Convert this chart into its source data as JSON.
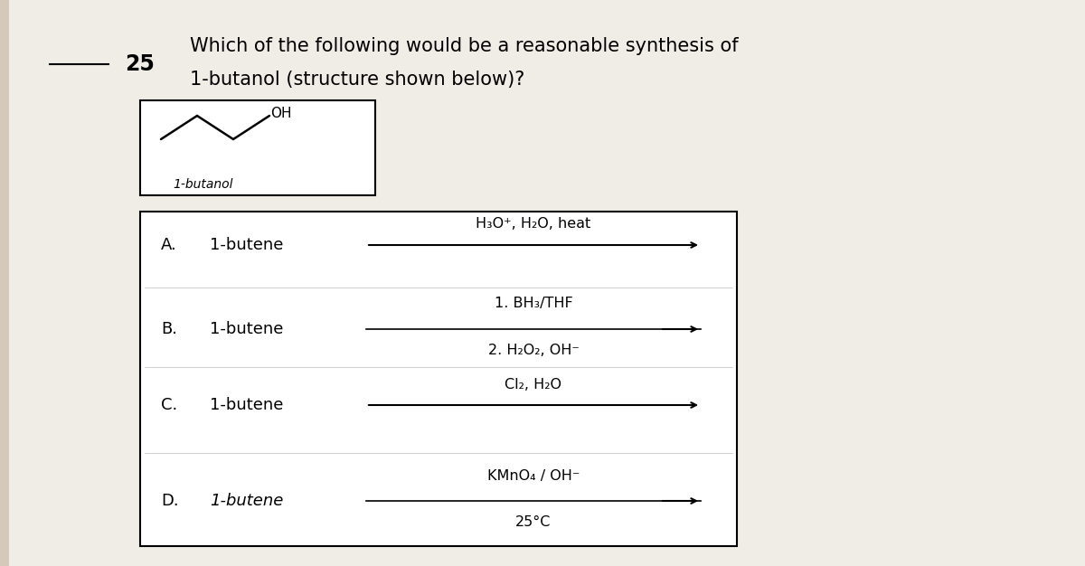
{
  "bg_color": "#d4c9bb",
  "paper_color": "#f0ece6",
  "question_number": "25",
  "question_text_line1": "Which of the following would be a reasonable synthesis of",
  "question_text_line2": "1-butanol (structure shown below)?",
  "molecule_label": "1-butanol",
  "options": [
    {
      "letter": "A.",
      "reactant": "1-butene",
      "italic": false,
      "reagent_line1": "H₃O⁺, H₂O, heat",
      "reagent_line2": ""
    },
    {
      "letter": "B.",
      "reactant": "1-butene",
      "italic": false,
      "reagent_line1": "1. BH₃/THF",
      "reagent_line2": "2. H₂O₂, OH⁻"
    },
    {
      "letter": "C.",
      "reactant": "1-butene",
      "italic": false,
      "reagent_line1": "Cl₂, H₂O",
      "reagent_line2": ""
    },
    {
      "letter": "D.",
      "reactant": "1-butene",
      "italic": true,
      "reagent_line1": "KMnO₄ / OH⁻",
      "reagent_line2": "25°C"
    }
  ],
  "title_fontsize": 15,
  "label_fontsize": 13,
  "reagent_fontsize": 11.5,
  "number_fontsize": 17
}
